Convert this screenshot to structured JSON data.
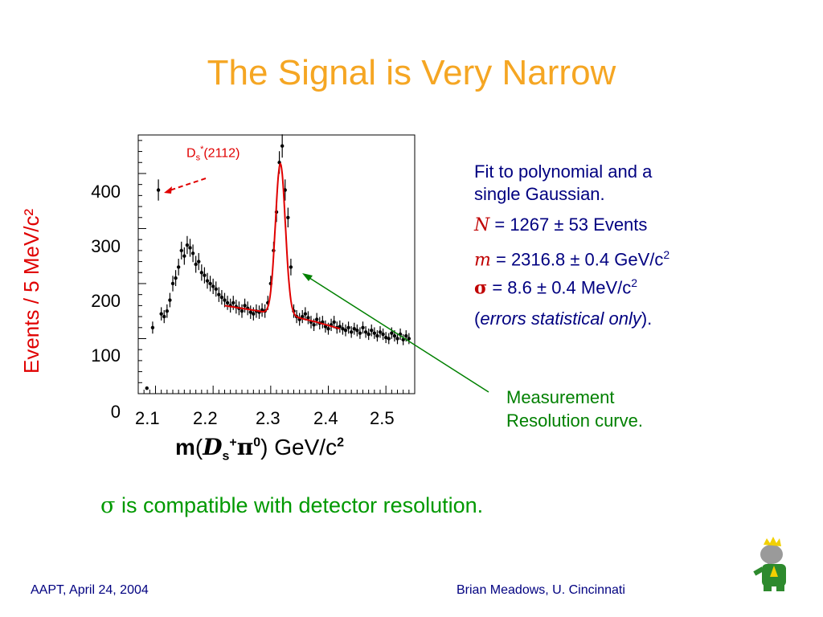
{
  "slide": {
    "title": "The Signal is Very Narrow",
    "footer_left": "AAPT, April 24, 2004",
    "footer_right": "Brian Meadows, U. Cincinnati",
    "logo_icon": "elephant-mascot-icon"
  },
  "fit_text": {
    "line1": "Fit to polynomial and a",
    "line2": "single Gaussian.",
    "n_symbol": "N",
    "n_value": " = 1267 ± 53 Events",
    "m_symbol": "m",
    "m_value": " = 2316.8 ± 0.4 GeV/c",
    "m_exp": "2",
    "sigma_symbol": "σ",
    "sigma_value": "  = 8.6 ± 0.4 MeV/c",
    "sigma_exp": "2",
    "errors_open": "(",
    "errors_text": "errors statistical only",
    "errors_close": ")."
  },
  "annotation": {
    "measurement_line1": "Measurement",
    "measurement_line2": "Resolution curve.",
    "ds_label_main": "D",
    "ds_label_sub": "s",
    "ds_label_sup": "*",
    "ds_label_rest": "(2112)"
  },
  "conclusion": {
    "sigma": "σ",
    "text": " is compatible with detector resolution."
  },
  "chart_data": {
    "type": "scatter",
    "ylabel": "Events / 5 MeV/c²",
    "xlabel_m": "m",
    "xlabel_open": "(",
    "xlabel_D": "D",
    "xlabel_sub": "s",
    "xlabel_sup": "+",
    "xlabel_pi": "π",
    "xlabel_pisup": "0",
    "xlabel_close": ") GeV/c",
    "xlabel_exp": "2",
    "xlim": [
      2.07,
      2.55
    ],
    "ylim": [
      0,
      470
    ],
    "y_ticks": [
      "0",
      "100",
      "200",
      "300",
      "400"
    ],
    "x_ticks": [
      "2.1",
      "2.2",
      "2.3",
      "2.4",
      "2.5"
    ],
    "points": {
      "x": [
        2.085,
        2.095,
        2.105,
        2.11,
        2.115,
        2.12,
        2.125,
        2.13,
        2.135,
        2.14,
        2.145,
        2.15,
        2.155,
        2.16,
        2.165,
        2.17,
        2.175,
        2.18,
        2.185,
        2.19,
        2.195,
        2.2,
        2.205,
        2.21,
        2.215,
        2.22,
        2.225,
        2.23,
        2.235,
        2.24,
        2.245,
        2.25,
        2.255,
        2.26,
        2.265,
        2.27,
        2.275,
        2.28,
        2.285,
        2.29,
        2.295,
        2.3,
        2.305,
        2.31,
        2.315,
        2.32,
        2.325,
        2.33,
        2.335,
        2.34,
        2.345,
        2.35,
        2.355,
        2.36,
        2.365,
        2.37,
        2.375,
        2.38,
        2.385,
        2.39,
        2.395,
        2.4,
        2.405,
        2.41,
        2.415,
        2.42,
        2.425,
        2.43,
        2.435,
        2.44,
        2.445,
        2.45,
        2.455,
        2.46,
        2.465,
        2.47,
        2.475,
        2.48,
        2.485,
        2.49,
        2.495,
        2.5,
        2.505,
        2.51,
        2.515,
        2.52,
        2.525,
        2.53,
        2.535,
        2.54
      ],
      "y": [
        10,
        120,
        370,
        145,
        140,
        150,
        170,
        200,
        210,
        230,
        260,
        250,
        270,
        265,
        255,
        235,
        240,
        220,
        215,
        205,
        200,
        195,
        190,
        180,
        175,
        170,
        165,
        160,
        165,
        158,
        155,
        150,
        160,
        155,
        148,
        145,
        150,
        148,
        152,
        150,
        165,
        200,
        260,
        330,
        420,
        450,
        370,
        320,
        230,
        150,
        140,
        135,
        140,
        145,
        138,
        130,
        125,
        135,
        128,
        130,
        122,
        118,
        125,
        130,
        120,
        122,
        118,
        115,
        120,
        112,
        118,
        115,
        110,
        120,
        112,
        108,
        115,
        110,
        105,
        112,
        108,
        102,
        100,
        110,
        105,
        100,
        108,
        98,
        105,
        100
      ]
    },
    "fit_curve": {
      "mass": 2.3168,
      "sigma": 0.0086,
      "amplitude": 275,
      "background": [
        [
          2.22,
          160
        ],
        [
          2.28,
          150
        ],
        [
          2.3,
          145
        ],
        [
          2.34,
          140
        ],
        [
          2.38,
          130
        ],
        [
          2.42,
          118
        ]
      ]
    },
    "colors": {
      "points": "#000000",
      "fit": "#e00000",
      "axis": "#000000"
    }
  }
}
